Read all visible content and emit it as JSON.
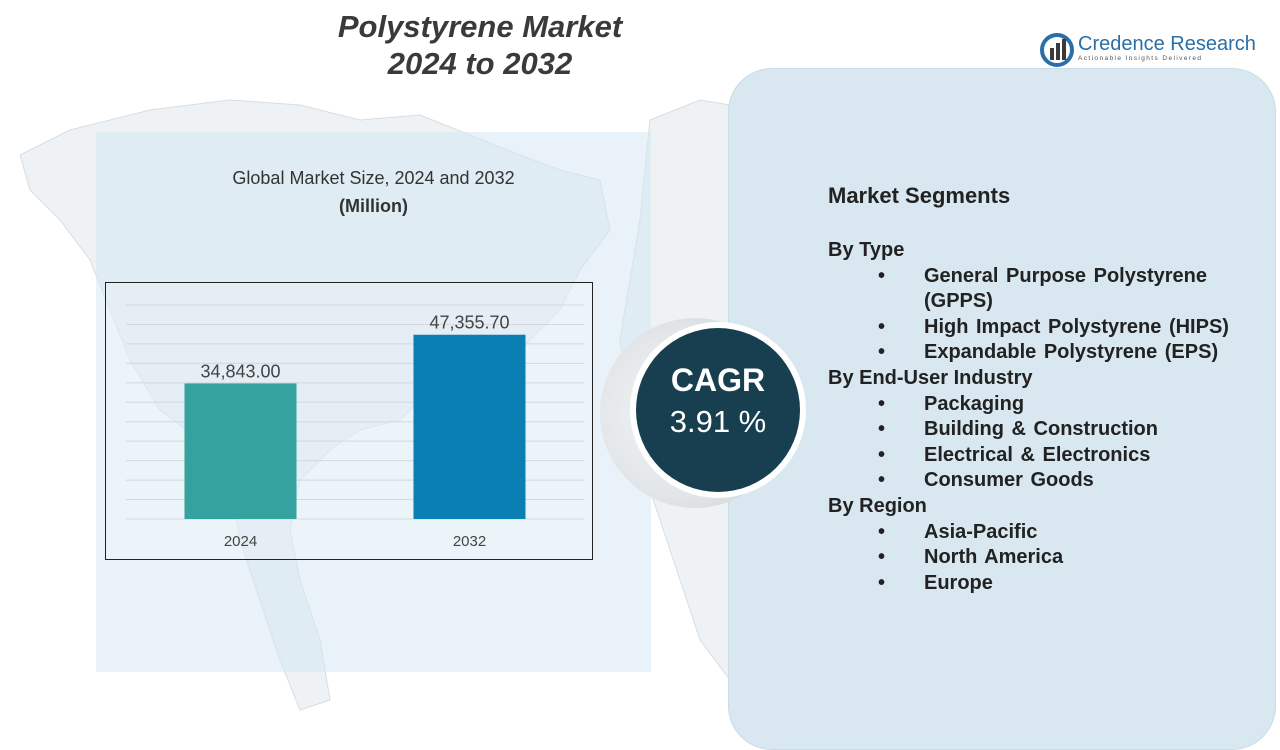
{
  "title_line1": "Polystyrene Market",
  "title_line2": "2024 to 2032",
  "brand": {
    "name": "Credence Research",
    "tagline": "Actionable Insights Delivered",
    "color": "#2a6fa8"
  },
  "chart_data": {
    "type": "bar",
    "title": "Global Market Size, 2024 and 2032",
    "subtitle": "(Million)",
    "categories": [
      "2024",
      "2032"
    ],
    "values": [
      34843.0,
      47355.7
    ],
    "value_labels": [
      "34,843.00",
      "47,355.70"
    ],
    "colors": [
      "#35a29f",
      "#0a7fb3"
    ],
    "ylim": [
      0,
      55000
    ],
    "grid": true,
    "xlabel": "",
    "ylabel": ""
  },
  "cagr": {
    "label": "CAGR",
    "value": "3.91 %"
  },
  "segments": {
    "heading": "Market Segments",
    "groups": [
      {
        "label": "By Type",
        "items": [
          "General Purpose Polystyrene (GPPS)",
          "High Impact Polystyrene (HIPS)",
          "Expandable Polystyrene (EPS)"
        ]
      },
      {
        "label": "By End-User Industry",
        "items": [
          "Packaging",
          "Building & Construction",
          "Electrical & Electronics",
          "Consumer Goods"
        ]
      },
      {
        "label": "By Region",
        "items": [
          "Asia-Pacific",
          "North America",
          "Europe"
        ]
      }
    ]
  }
}
